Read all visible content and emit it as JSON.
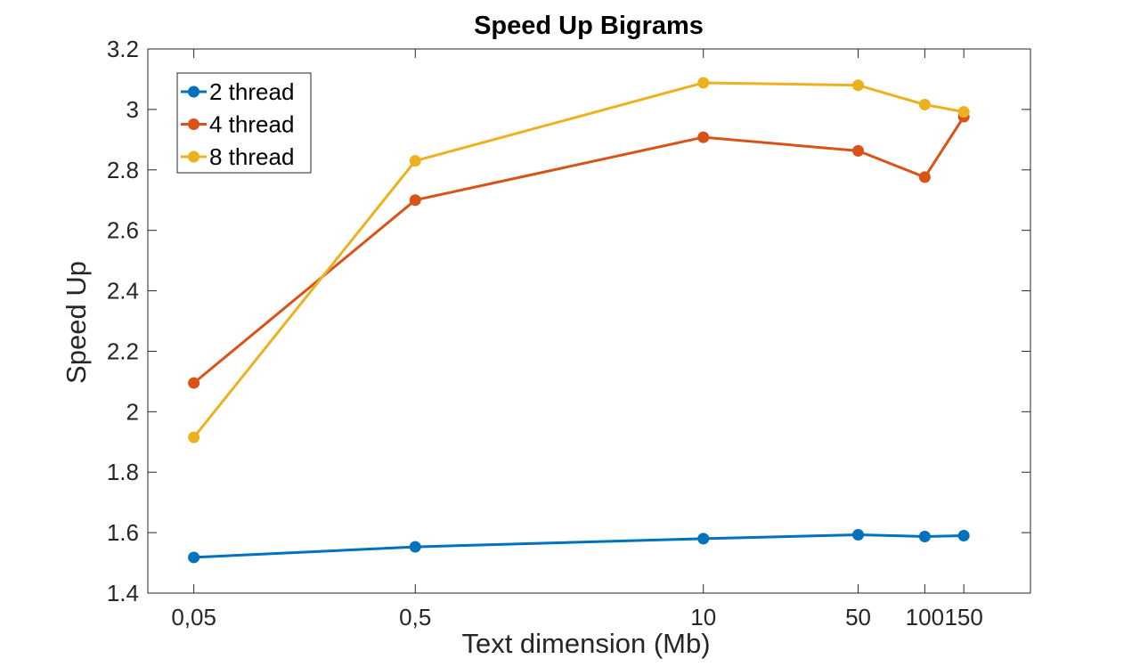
{
  "chart_data": {
    "type": "line",
    "title": "Speed Up Bigrams",
    "xlabel": "Text dimension (Mb)",
    "ylabel": "Speed Up",
    "x_scale": "log",
    "x": [
      0.05,
      0.5,
      10,
      50,
      100,
      150
    ],
    "x_tick_labels": [
      "0,05",
      "0,5",
      "10",
      "50",
      "100",
      "150"
    ],
    "xlim": [
      0.031,
      300
    ],
    "ylim": [
      1.4,
      3.2
    ],
    "y_ticks": [
      1.4,
      1.6,
      1.8,
      2,
      2.2,
      2.4,
      2.6,
      2.8,
      3,
      3.2
    ],
    "y_tick_labels": [
      "1.4",
      "1.6",
      "1.8",
      "2",
      "2.2",
      "2.4",
      "2.6",
      "2.8",
      "3",
      "3.2"
    ],
    "grid": false,
    "legend_position": "top-left",
    "series": [
      {
        "name": "2 thread",
        "color": "#0072BD",
        "values": [
          1.518,
          1.553,
          1.58,
          1.593,
          1.587,
          1.59
        ]
      },
      {
        "name": "4 thread",
        "color": "#D95319",
        "values": [
          2.095,
          2.7,
          2.908,
          2.863,
          2.776,
          2.976
        ]
      },
      {
        "name": "8 thread",
        "color": "#EDB120",
        "values": [
          1.915,
          2.83,
          3.088,
          3.08,
          3.016,
          2.992
        ]
      }
    ]
  }
}
